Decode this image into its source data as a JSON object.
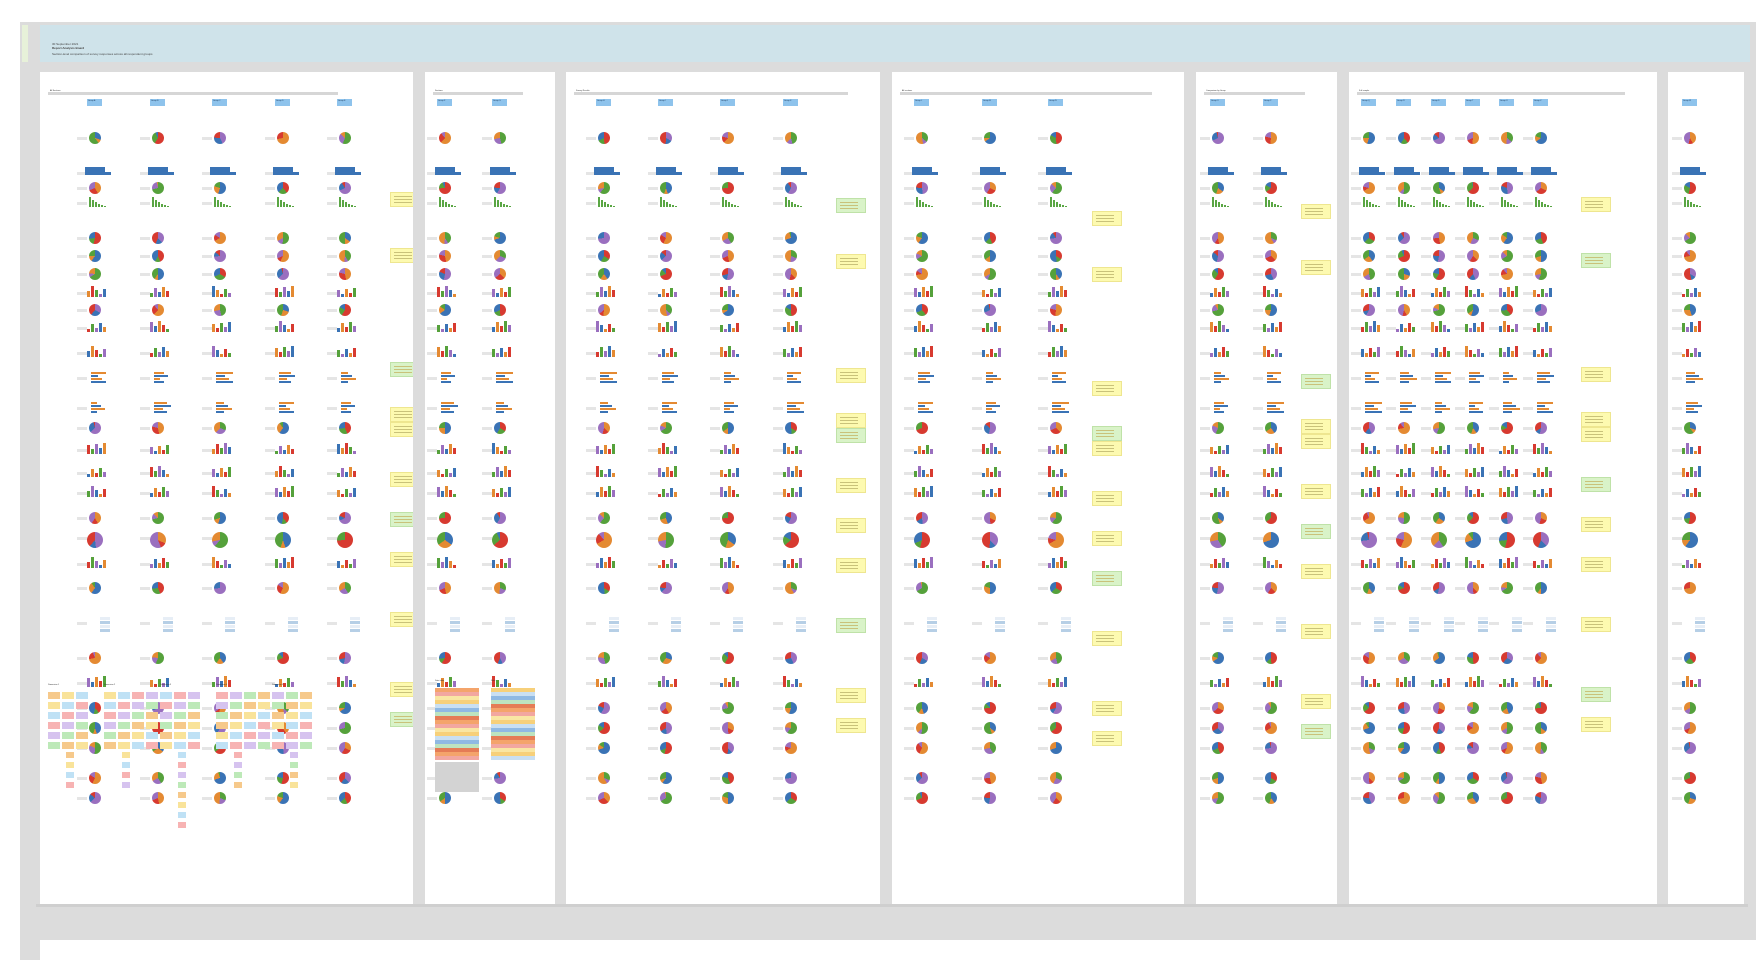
{
  "board": {
    "header_date": "30 September 2021",
    "header_title": "Report Analysis Board",
    "header_subtitle": "Section-level comparison of survey responses across all respondent groups"
  },
  "colors": {
    "background": "#dcdcdc",
    "header": "#cfe3ea",
    "frame": "#ffffff",
    "chip": "#8ec3ec",
    "sticky_yellow": "#fdfab0",
    "sticky_green": "#d9f3c8",
    "blue": "#3a73b5",
    "orange": "#e48a32",
    "red": "#d73a30",
    "green": "#55a13b",
    "purple": "#9a6fbf",
    "gray": "#b5b5b5"
  },
  "frames": [
    {
      "title": "All Sections",
      "chip_labels": [
        "Group A",
        "Group B",
        "Group C",
        "Group D",
        "Group E"
      ],
      "icon": "frame-icon"
    },
    {
      "title": "Sections",
      "chip_labels": [
        "Group F",
        "Group G"
      ],
      "icon": "frame-icon"
    },
    {
      "title": "Survey Results",
      "chip_labels": [
        "Group H",
        "Group I",
        "Group J",
        "Group K"
      ],
      "icon": "frame-icon"
    },
    {
      "title": "All sections",
      "chip_labels": [
        "Group L",
        "Group M",
        "Group N"
      ],
      "icon": "frame-icon"
    },
    {
      "title": "Comparison by Group",
      "chip_labels": [
        "Group O",
        "Group P"
      ],
      "icon": "frame-icon"
    },
    {
      "title": "Full sample",
      "chip_labels": [
        "Group Q",
        "Group R",
        "Group S",
        "Group T",
        "Group U",
        "Group V"
      ],
      "icon": "frame-icon"
    },
    {
      "title": "",
      "chip_labels": [
        "Group W"
      ],
      "icon": "frame-icon"
    }
  ],
  "bottom_labels": {
    "frame1": [
      "Dimension 1",
      "Dimension 2",
      "Dimension 3",
      "Dimension 4",
      "Dimension 5"
    ],
    "frame2": [
      "Data table",
      "Data"
    ]
  }
}
